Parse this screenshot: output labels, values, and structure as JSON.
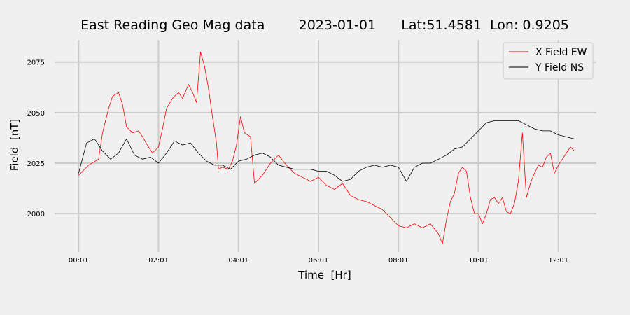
{
  "chart_data": {
    "type": "line",
    "title": "East Reading Geo Mag data        2023-01-01      Lat:51.4581  Lon: 0.9205",
    "xlabel": "Time  [Hr]",
    "ylabel": "Field  [nT]",
    "x_ticks": [
      "00:01",
      "02:01",
      "04:01",
      "06:01",
      "08:01",
      "10:01",
      "12:01"
    ],
    "x_tick_hours": [
      0,
      2,
      4,
      6,
      8,
      10,
      12
    ],
    "xlim_hours": [
      -0.6,
      12.95
    ],
    "y_ticks": [
      2000,
      2025,
      2050,
      2075
    ],
    "ylim": [
      1981,
      2086
    ],
    "grid": true,
    "legend_position": "top-right",
    "series": [
      {
        "name": "X Field EW",
        "color": "#ff0000",
        "x_hours": [
          0,
          0.25,
          0.5,
          0.6,
          0.75,
          0.85,
          1.0,
          1.1,
          1.2,
          1.35,
          1.5,
          1.6,
          1.75,
          1.85,
          2.0,
          2.1,
          2.2,
          2.35,
          2.5,
          2.6,
          2.75,
          2.85,
          2.95,
          3.05,
          3.15,
          3.25,
          3.35,
          3.45,
          3.5,
          3.6,
          3.75,
          3.85,
          3.95,
          4.05,
          4.15,
          4.3,
          4.4,
          4.6,
          4.8,
          5.0,
          5.2,
          5.4,
          5.6,
          5.8,
          6.0,
          6.2,
          6.4,
          6.6,
          6.8,
          7.0,
          7.2,
          7.4,
          7.6,
          7.8,
          8.0,
          8.2,
          8.4,
          8.6,
          8.8,
          9.0,
          9.1,
          9.2,
          9.3,
          9.4,
          9.5,
          9.6,
          9.7,
          9.8,
          9.9,
          10.0,
          10.1,
          10.2,
          10.3,
          10.4,
          10.5,
          10.6,
          10.7,
          10.8,
          10.9,
          11.0,
          11.1,
          11.2,
          11.3,
          11.4,
          11.5,
          11.6,
          11.7,
          11.8,
          11.9,
          12.0,
          12.1,
          12.2,
          12.3,
          12.4
        ],
        "y": [
          2019,
          2024,
          2027,
          2040,
          2052,
          2058,
          2060,
          2054,
          2043,
          2040,
          2041,
          2038,
          2033,
          2030,
          2033,
          2042,
          2052,
          2057,
          2060,
          2057,
          2064,
          2060,
          2055,
          2080,
          2073,
          2062,
          2048,
          2035,
          2022,
          2023,
          2022,
          2026,
          2034,
          2048,
          2040,
          2038,
          2015,
          2019,
          2025,
          2029,
          2024,
          2020,
          2018,
          2016,
          2018,
          2014,
          2012,
          2015,
          2009,
          2007,
          2006,
          2004,
          2002,
          1998,
          1994,
          1993,
          1995,
          1993,
          1995,
          1990,
          1985,
          1997,
          2006,
          2010,
          2020,
          2023,
          2021,
          2008,
          2000,
          2000,
          1995,
          2000,
          2007,
          2008,
          2005,
          2008,
          2001,
          2000,
          2005,
          2016,
          2040,
          2008,
          2015,
          2020,
          2024,
          2023,
          2028,
          2030,
          2020,
          2024,
          2027,
          2030,
          2033,
          2031
        ]
      },
      {
        "name": "Y Field NS",
        "color": "#000000",
        "x_hours": [
          0,
          0.2,
          0.4,
          0.6,
          0.8,
          1.0,
          1.2,
          1.4,
          1.6,
          1.8,
          2.0,
          2.2,
          2.4,
          2.6,
          2.8,
          3.0,
          3.2,
          3.4,
          3.6,
          3.8,
          4.0,
          4.2,
          4.4,
          4.6,
          4.8,
          5.0,
          5.2,
          5.4,
          5.6,
          5.8,
          6.0,
          6.2,
          6.4,
          6.6,
          6.8,
          7.0,
          7.2,
          7.4,
          7.6,
          7.8,
          8.0,
          8.2,
          8.4,
          8.6,
          8.8,
          9.0,
          9.2,
          9.4,
          9.6,
          9.8,
          10.0,
          10.2,
          10.4,
          10.6,
          10.8,
          11.0,
          11.2,
          11.4,
          11.6,
          11.8,
          12.0,
          12.2,
          12.4
        ],
        "y": [
          2020,
          2035,
          2037,
          2031,
          2027,
          2030,
          2037,
          2029,
          2027,
          2028,
          2025,
          2030,
          2036,
          2034,
          2035,
          2030,
          2026,
          2024,
          2024,
          2022,
          2026,
          2027,
          2029,
          2030,
          2028,
          2024,
          2023,
          2022,
          2022,
          2022,
          2021,
          2021,
          2019,
          2016,
          2017,
          2021,
          2023,
          2024,
          2023,
          2024,
          2023,
          2016,
          2023,
          2025,
          2025,
          2027,
          2029,
          2032,
          2033,
          2037,
          2041,
          2045,
          2046,
          2046,
          2046,
          2046,
          2044,
          2042,
          2041,
          2041,
          2039,
          2038,
          2037
        ]
      }
    ]
  }
}
